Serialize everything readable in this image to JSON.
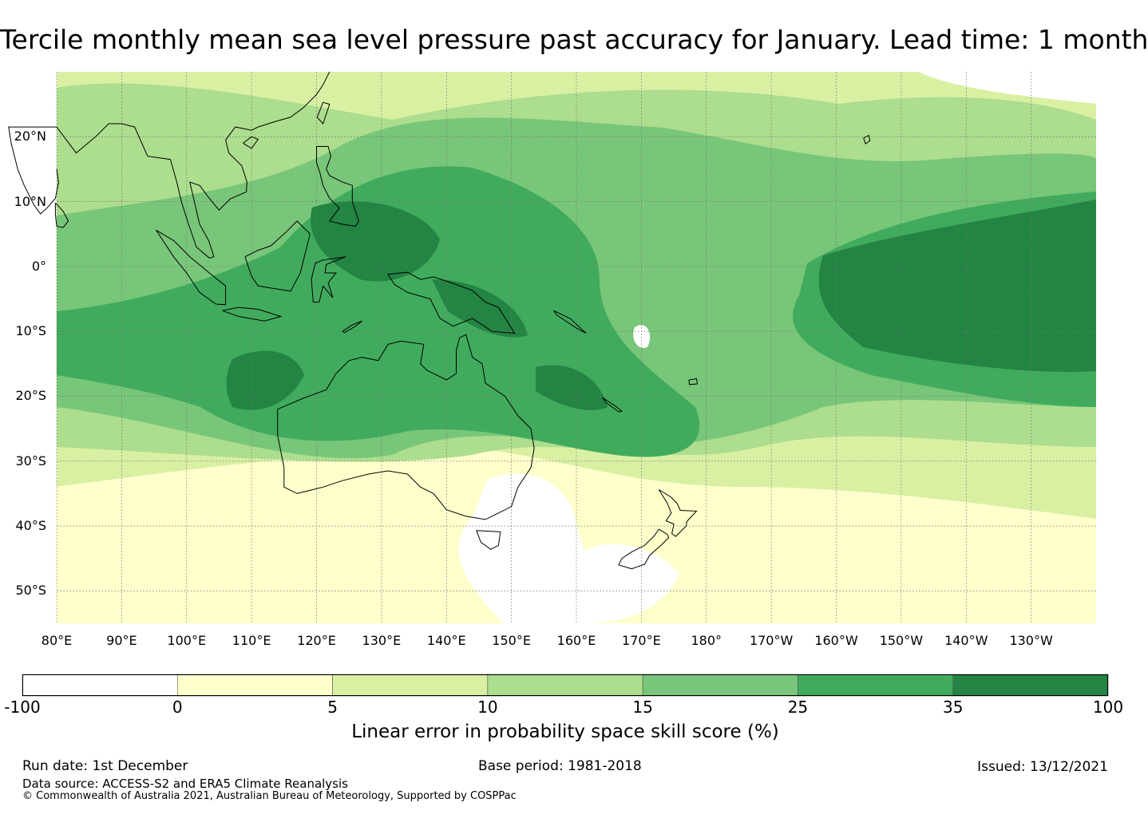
{
  "title": "Tercile monthly mean sea level pressure past accuracy for January. Lead time: 1 month",
  "map": {
    "lat_labels": [
      "20°N",
      "10°N",
      "0°",
      "10°S",
      "20°S",
      "30°S",
      "40°S",
      "50°S"
    ],
    "lon_labels": [
      "80°E",
      "90°E",
      "100°E",
      "110°E",
      "120°E",
      "130°E",
      "140°E",
      "150°E",
      "160°E",
      "170°E",
      "180°",
      "170°W",
      "160°W",
      "150°W",
      "140°W",
      "130°W"
    ],
    "lat_values": [
      20,
      10,
      0,
      -10,
      -20,
      -30,
      -40,
      -50
    ],
    "lon_values": [
      80,
      90,
      100,
      110,
      120,
      130,
      140,
      150,
      160,
      170,
      180,
      190,
      200,
      210,
      220,
      230
    ],
    "extent": {
      "lon_min": 80,
      "lon_max": 240,
      "lat_min": -55,
      "lat_max": 30
    }
  },
  "colorbar": {
    "ticks": [
      "-100",
      "0",
      "5",
      "10",
      "15",
      "25",
      "35",
      "100"
    ],
    "colors": [
      "#ffffff",
      "#ffffcc",
      "#d9f0a3",
      "#addd8e",
      "#78c679",
      "#41ab5d",
      "#238443"
    ],
    "label": "Linear error in probability space skill score (%)"
  },
  "footer": {
    "run_date": "Run date: 1st December",
    "base_period": "Base period: 1981-2018",
    "issued": "Issued: 13/12/2021",
    "data_source": "Data source: ACCESS-S2 and ERA5 Climate Reanalysis",
    "copyright": "© Commonwealth of Australia 2021, Australian Bureau of Meteorology, Supported by COSPPac"
  }
}
